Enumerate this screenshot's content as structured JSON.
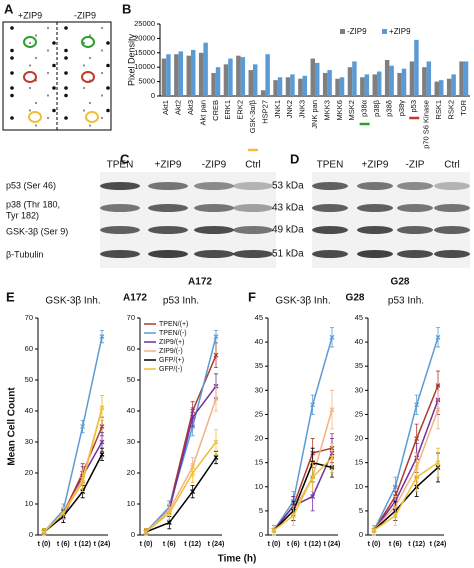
{
  "panel_letters": [
    "A",
    "B",
    "C",
    "D",
    "E",
    "F"
  ],
  "dot_blot": {
    "labels": [
      "+ZIP9",
      "-ZIP9"
    ]
  },
  "blot_c": {
    "lanes": [
      "TPEN",
      "+ZIP9",
      "-ZIP9",
      "Ctrl"
    ],
    "row_labels": [
      "p53 (Ser 46)",
      "p38 (Thr 180,",
      "Tyr 182)",
      "GSK-3β (Ser 9)",
      "β-Tubulin"
    ],
    "cell_line": "A172"
  },
  "blot_d": {
    "lanes": [
      "TPEN",
      "+ZIP9",
      "-ZIP",
      "Ctrl"
    ],
    "sizes": [
      "53 kDa",
      "43 kDa",
      "49 kDa",
      "51 kDa"
    ],
    "cell_line": "G28"
  },
  "group_titles": [
    "A172",
    "G28"
  ],
  "time_axis_label": "Time (h)",
  "chart_data": [
    {
      "type": "bar",
      "ylabel": "Pixel Density",
      "categories": [
        "Akt1",
        "Akt2",
        "Akt3",
        "Akt pan",
        "CREB",
        "ERK1",
        "ERK2",
        "GSK-3α/β",
        "HSP27",
        "JNK1",
        "JNK2",
        "JNK3",
        "JNK pan",
        "MKK3",
        "MKK6",
        "MSK2",
        "p38α",
        "p38β",
        "p38δ",
        "p38γ",
        "p53",
        "p70 S6 Kinase",
        "RSK1",
        "RSK2",
        "TOR"
      ],
      "series": [
        {
          "name": "-ZIP9",
          "color": "#7f7f7f",
          "values": [
            13000,
            14500,
            14000,
            15000,
            8000,
            11000,
            14000,
            9000,
            2000,
            5500,
            6500,
            6000,
            13000,
            8000,
            6000,
            10000,
            6500,
            7500,
            12500,
            8000,
            12000,
            10000,
            5000,
            6000,
            12000
          ]
        },
        {
          "name": "+ZIP9",
          "color": "#5b9bd5",
          "values": [
            14500,
            15500,
            16000,
            18500,
            10000,
            13000,
            13500,
            11000,
            14500,
            6500,
            7500,
            7000,
            11500,
            9000,
            6500,
            12000,
            7500,
            8500,
            10500,
            9500,
            19500,
            12000,
            5500,
            7500,
            12000
          ]
        }
      ],
      "ylim": [
        0,
        25000
      ],
      "yticks": [
        0,
        5000,
        10000,
        15000,
        20000,
        25000
      ],
      "legend": "upper right"
    },
    {
      "type": "line",
      "title": "GSK-3β Inh.",
      "ylabel": "Mean Cell Count",
      "categories": [
        "t (0)",
        "t (6)",
        "t (12)",
        "t (24)"
      ],
      "ylim": [
        0,
        70
      ],
      "yticks": [
        0,
        10,
        20,
        30,
        40,
        50,
        60,
        70
      ],
      "series": [
        {
          "name": "TPEN/(+)",
          "color": "#b03a2e",
          "values": [
            1,
            7,
            20,
            35
          ],
          "errors": [
            1,
            2,
            3,
            3
          ]
        },
        {
          "name": "TPEN/(-)",
          "color": "#5b9bd5",
          "values": [
            1,
            8,
            35,
            64
          ],
          "errors": [
            1,
            2,
            2,
            2
          ]
        },
        {
          "name": "ZIP9/(+)",
          "color": "#7030a0",
          "values": [
            1,
            6,
            19,
            30
          ],
          "errors": [
            1,
            2,
            3,
            3
          ]
        },
        {
          "name": "ZIP9/(-)",
          "color": "#f4b183",
          "values": [
            1,
            7,
            18,
            41
          ],
          "errors": [
            1,
            2,
            3,
            4
          ]
        },
        {
          "name": "GFP/(+)",
          "color": "#000000",
          "values": [
            1,
            6,
            14,
            26
          ],
          "errors": [
            1,
            2,
            2,
            2
          ]
        },
        {
          "name": "GFP/(-)",
          "color": "#f0c030",
          "values": [
            1,
            7,
            17,
            41
          ],
          "errors": [
            1,
            2,
            3,
            4
          ]
        }
      ]
    },
    {
      "type": "line",
      "title": "p53 Inh.",
      "categories": [
        "t (0)",
        "t (6)",
        "t (12)",
        "t (24)"
      ],
      "ylim": [
        0,
        70
      ],
      "yticks": [
        0,
        10,
        20,
        30,
        40,
        50,
        60,
        70
      ],
      "legend": "upper left",
      "series": [
        {
          "name": "TPEN/(+)",
          "color": "#b03a2e",
          "values": [
            1,
            9,
            40,
            58
          ],
          "errors": [
            1,
            2,
            3,
            4
          ]
        },
        {
          "name": "TPEN/(-)",
          "color": "#5b9bd5",
          "values": [
            1,
            9,
            35,
            64
          ],
          "errors": [
            1,
            2,
            3,
            2
          ]
        },
        {
          "name": "ZIP9/(+)",
          "color": "#7030a0",
          "values": [
            1,
            8,
            38,
            48
          ],
          "errors": [
            1,
            2,
            3,
            4
          ]
        },
        {
          "name": "ZIP9/(-)",
          "color": "#f4b183",
          "values": [
            1,
            8,
            22,
            44
          ],
          "errors": [
            1,
            2,
            3,
            4
          ]
        },
        {
          "name": "GFP/(+)",
          "color": "#000000",
          "values": [
            1,
            4,
            14,
            25
          ],
          "errors": [
            1,
            2,
            2,
            2
          ]
        },
        {
          "name": "GFP/(-)",
          "color": "#f0c030",
          "values": [
            1,
            7,
            20,
            30
          ],
          "errors": [
            1,
            2,
            3,
            4
          ]
        }
      ]
    },
    {
      "type": "line",
      "title": "GSK-3β Inh.",
      "categories": [
        "t (0)",
        "t (6)",
        "t (12)",
        "t (24)"
      ],
      "ylim": [
        0,
        45
      ],
      "yticks": [
        0,
        5,
        10,
        15,
        20,
        25,
        30,
        35,
        40,
        45
      ],
      "series": [
        {
          "name": "TPEN/(+)",
          "color": "#b03a2e",
          "values": [
            1,
            6,
            17,
            18
          ],
          "errors": [
            1,
            2,
            3,
            3
          ]
        },
        {
          "name": "TPEN/(-)",
          "color": "#5b9bd5",
          "values": [
            1,
            7,
            27,
            41
          ],
          "errors": [
            1,
            2,
            2,
            2
          ]
        },
        {
          "name": "ZIP9/(+)",
          "color": "#7030a0",
          "values": [
            1,
            6,
            8,
            17
          ],
          "errors": [
            1,
            2,
            3,
            3
          ]
        },
        {
          "name": "ZIP9/(-)",
          "color": "#f4b183",
          "values": [
            1,
            5,
            12,
            26
          ],
          "errors": [
            1,
            2,
            3,
            4
          ]
        },
        {
          "name": "GFP/(+)",
          "color": "#000000",
          "values": [
            1,
            5,
            15,
            14
          ],
          "errors": [
            1,
            2,
            3,
            2
          ]
        },
        {
          "name": "GFP/(-)",
          "color": "#f0c030",
          "values": [
            1,
            4,
            12,
            16
          ],
          "errors": [
            1,
            2,
            3,
            3
          ]
        }
      ]
    },
    {
      "type": "line",
      "title": "p53 Inh.",
      "categories": [
        "t (0)",
        "t (6)",
        "t (12)",
        "t (24)"
      ],
      "ylim": [
        0,
        45
      ],
      "yticks": [
        0,
        5,
        10,
        15,
        20,
        25,
        30,
        35,
        40,
        45
      ],
      "series": [
        {
          "name": "TPEN/(+)",
          "color": "#b03a2e",
          "values": [
            1,
            8,
            20,
            31
          ],
          "errors": [
            1,
            2,
            3,
            3
          ]
        },
        {
          "name": "TPEN/(-)",
          "color": "#5b9bd5",
          "values": [
            1,
            10,
            27,
            41
          ],
          "errors": [
            1,
            2,
            2,
            2
          ]
        },
        {
          "name": "ZIP9/(+)",
          "color": "#7030a0",
          "values": [
            1,
            7,
            16,
            28
          ],
          "errors": [
            1,
            2,
            3,
            3
          ]
        },
        {
          "name": "ZIP9/(-)",
          "color": "#f4b183",
          "values": [
            1,
            6,
            14,
            26
          ],
          "errors": [
            1,
            2,
            3,
            4
          ]
        },
        {
          "name": "GFP/(+)",
          "color": "#000000",
          "values": [
            1,
            5,
            10,
            14
          ],
          "errors": [
            1,
            2,
            2,
            3
          ]
        },
        {
          "name": "GFP/(-)",
          "color": "#f0c030",
          "values": [
            1,
            4,
            12,
            15
          ],
          "errors": [
            1,
            2,
            3,
            3
          ]
        }
      ]
    }
  ]
}
